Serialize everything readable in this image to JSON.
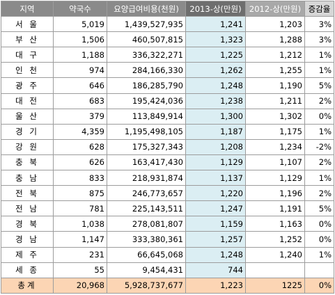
{
  "headers": [
    "지역",
    "약국수",
    "요양급여비용(천원)",
    "2013-상(만원)",
    "2012-상(만원)",
    "증감율"
  ],
  "rows": [
    {
      "region": "서 울",
      "pharmacies": "5,019",
      "cost": "1,439,527,935",
      "y2013": "1,241",
      "y2012": "1,203",
      "change": "3%"
    },
    {
      "region": "부 산",
      "pharmacies": "1,506",
      "cost": "460,507,815",
      "y2013": "1,323",
      "y2012": "1,288",
      "change": "3%"
    },
    {
      "region": "대 구",
      "pharmacies": "1,188",
      "cost": "336,322,271",
      "y2013": "1,225",
      "y2012": "1,212",
      "change": "1%"
    },
    {
      "region": "인 천",
      "pharmacies": "974",
      "cost": "284,166,330",
      "y2013": "1,262",
      "y2012": "1,255",
      "change": "1%"
    },
    {
      "region": "광 주",
      "pharmacies": "646",
      "cost": "186,285,790",
      "y2013": "1,248",
      "y2012": "1,190",
      "change": "5%"
    },
    {
      "region": "대 전",
      "pharmacies": "683",
      "cost": "195,424,036",
      "y2013": "1,238",
      "y2012": "1,211",
      "change": "2%"
    },
    {
      "region": "울 산",
      "pharmacies": "379",
      "cost": "113,849,914",
      "y2013": "1,300",
      "y2012": "1,302",
      "change": "0%"
    },
    {
      "region": "경 기",
      "pharmacies": "4,359",
      "cost": "1,195,498,105",
      "y2013": "1,187",
      "y2012": "1,175",
      "change": "1%"
    },
    {
      "region": "강 원",
      "pharmacies": "628",
      "cost": "175,327,343",
      "y2013": "1,208",
      "y2012": "1,234",
      "change": "-2%"
    },
    {
      "region": "충 북",
      "pharmacies": "626",
      "cost": "163,417,430",
      "y2013": "1,129",
      "y2012": "1,107",
      "change": "2%"
    },
    {
      "region": "충 남",
      "pharmacies": "833",
      "cost": "218,931,874",
      "y2013": "1,137",
      "y2012": "1,129",
      "change": "1%"
    },
    {
      "region": "전 북",
      "pharmacies": "875",
      "cost": "246,773,657",
      "y2013": "1,220",
      "y2012": "1,196",
      "change": "2%"
    },
    {
      "region": "전 남",
      "pharmacies": "781",
      "cost": "225,143,511",
      "y2013": "1,247",
      "y2012": "1,191",
      "change": "5%"
    },
    {
      "region": "경 북",
      "pharmacies": "1,038",
      "cost": "278,081,807",
      "y2013": "1,159",
      "y2012": "1,163",
      "change": "0%"
    },
    {
      "region": "경 남",
      "pharmacies": "1,147",
      "cost": "333,380,361",
      "y2013": "1,257",
      "y2012": "1,252",
      "change": "0%"
    },
    {
      "region": "제 주",
      "pharmacies": "231",
      "cost": "66,645,068",
      "y2013": "1,248",
      "y2012": "1,240",
      "change": "1%"
    },
    {
      "region": "세 종",
      "pharmacies": "55",
      "cost": "9,454,431",
      "y2013": "744",
      "y2012": "",
      "change": ""
    }
  ],
  "total": {
    "region": "총계",
    "pharmacies": "20,968",
    "cost": "5,928,737,677",
    "y2013": "1,223",
    "y2012": "1225",
    "change": "0%"
  },
  "colors": {
    "header": "#8a8a8a",
    "highlight_column": "#dbeef3",
    "total_row": "#fcd5b4"
  }
}
